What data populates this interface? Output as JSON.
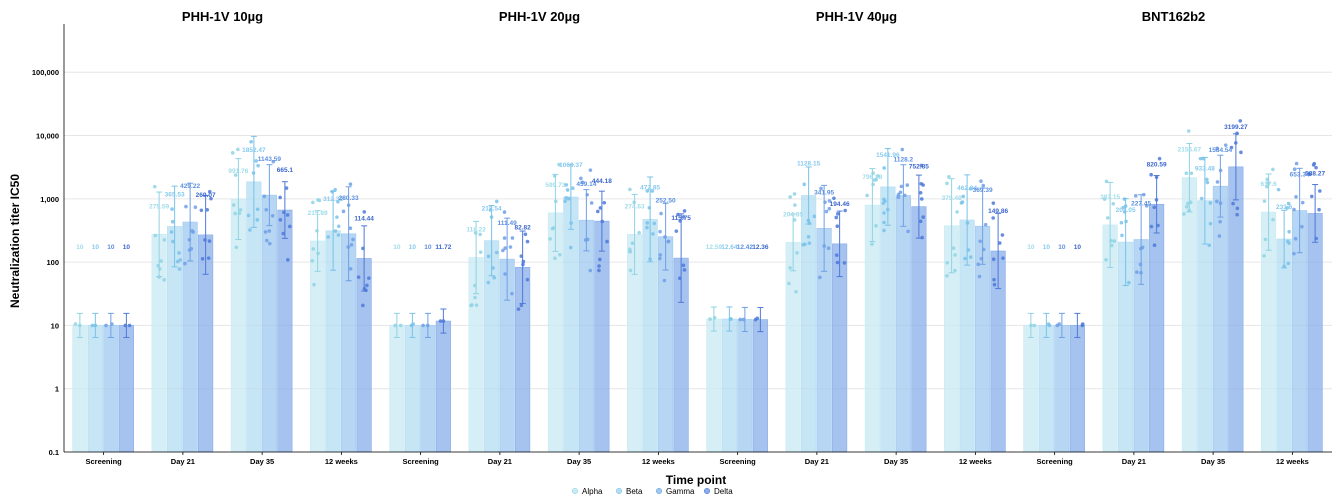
{
  "chart_data": {
    "type": "bar",
    "ylabel": "Neutralization titer IC50",
    "xlabel": "Time point",
    "yscale": "log",
    "ylim": [
      0.1,
      500000
    ],
    "y_ticks": [
      0.1,
      1,
      10,
      100,
      1000,
      10000,
      100000
    ],
    "y_tick_labels": [
      "0.1",
      "1",
      "10",
      "100",
      "1,000",
      "10,000",
      "100,000"
    ],
    "grid": true,
    "legend_position": "bottom",
    "legend": [
      "Alpha",
      "Beta",
      "Gamma",
      "Delta"
    ],
    "series_colors": [
      "#c8eaf3",
      "#b3dcf2",
      "#9ec8ef",
      "#88ade9"
    ],
    "point_colors": [
      "#8fd3e4",
      "#79c2ea",
      "#6f9fe6",
      "#4e79d9"
    ],
    "label_colors": [
      "#9fdcea",
      "#86c9ee",
      "#5c8fe0",
      "#3a66cc"
    ],
    "categories": [
      "Screening",
      "Day 21",
      "Day 35",
      "12 weeks"
    ],
    "panels": [
      {
        "title": "PHH-1V 10µg",
        "values": [
          [
            10,
            10,
            10,
            10
          ],
          [
            275.59,
            365.53,
            429.22,
            269.07
          ],
          [
            991.76,
            1852.47,
            1143.59,
            665.1
          ],
          [
            215.89,
            312.32,
            280.33,
            114.44
          ]
        ],
        "labels": [
          [
            "10",
            "10",
            "10",
            "10"
          ],
          [
            "275.59",
            "365.53",
            "429.22",
            "269.07"
          ],
          [
            "991.76",
            "1852.47",
            "1143.59",
            "665.1"
          ],
          [
            "215.89",
            "312.32",
            "280.33",
            "114.44"
          ]
        ]
      },
      {
        "title": "PHH-1V 20µg",
        "values": [
          [
            10,
            10,
            10,
            11.72
          ],
          [
            118.22,
            218.54,
            111.49,
            82.82
          ],
          [
            599.73,
            1069.37,
            459.14,
            444.18
          ],
          [
            274.63,
            472.85,
            252.5,
            115.75
          ]
        ],
        "labels": [
          [
            "10",
            "10",
            "10",
            "11.72"
          ],
          [
            "118.22",
            "218.54",
            "111.49",
            "82.82"
          ],
          [
            "599.73",
            "1069.37",
            "459.14",
            "444.18"
          ],
          [
            "274.63",
            "472.85",
            "252.50",
            "115.75"
          ]
        ]
      },
      {
        "title": "PHH-1V 40µg",
        "values": [
          [
            12.59,
            12.64,
            12.42,
            12.36
          ],
          [
            204.85,
            1128.15,
            341.95,
            194.46
          ],
          [
            796.88,
            1541.96,
            1128.2,
            752.85
          ],
          [
            375.48,
            462.84,
            369.39,
            149.86
          ]
        ],
        "labels": [
          [
            "12.59",
            "12.64",
            "12.42",
            "12.36"
          ],
          [
            "204.85",
            "1128.15",
            "341.95",
            "194.46"
          ],
          [
            "796.88",
            "1541.96",
            "1128.2",
            "752.85"
          ],
          [
            "375.48",
            "462.84",
            "369.39",
            "149.86"
          ]
        ]
      },
      {
        "title": "BNT162b2",
        "values": [
          [
            10,
            10,
            10,
            10
          ],
          [
            387.15,
            207.05,
            227.45,
            820.59
          ],
          [
            2156.67,
            933.48,
            1584.54,
            3199.27
          ],
          [
            617.6,
            231.6,
            653.34,
            588.27
          ]
        ],
        "labels": [
          [
            "10",
            "10",
            "10",
            "10"
          ],
          [
            "387.15",
            "207.05",
            "227.45",
            "820.59"
          ],
          [
            "2156.67",
            "933.48",
            "1584.54",
            "3199.27"
          ],
          [
            "617.6",
            "231.6",
            "653.34",
            "588.27"
          ]
        ]
      }
    ]
  }
}
